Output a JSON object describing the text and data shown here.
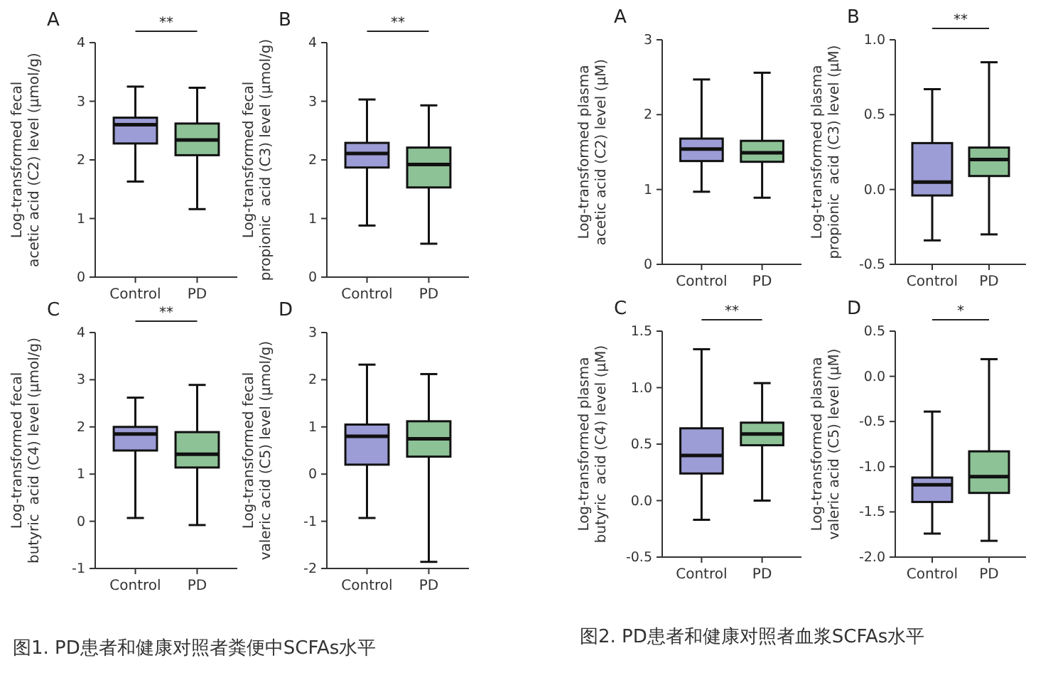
{
  "chart_data": [
    {
      "type": "box",
      "title": "A",
      "ylabel": "Log-transformed fecal\nacetic acid (C2) level (μmol/g)",
      "categories": [
        "Control",
        "PD"
      ],
      "colors": [
        "#4b4bb4",
        "#2f8f3f"
      ],
      "ylim": [
        0,
        4
      ],
      "yticks": [
        0,
        1,
        2,
        3,
        4
      ],
      "annotations": [
        "**"
      ],
      "boxes": [
        {
          "low": 1.63,
          "q1": 2.28,
          "median": 2.6,
          "q3": 2.72,
          "high": 3.25
        },
        {
          "low": 1.16,
          "q1": 2.08,
          "median": 2.34,
          "q3": 2.62,
          "high": 3.23
        }
      ]
    },
    {
      "type": "box",
      "title": "B",
      "ylabel": "Log-transformed fecal\npropionic  acid (C3) level (μmol/g)",
      "categories": [
        "Control",
        "PD"
      ],
      "colors": [
        "#4b4bb4",
        "#2f8f3f"
      ],
      "ylim": [
        0,
        4
      ],
      "yticks": [
        0,
        1,
        2,
        3,
        4
      ],
      "annotations": [
        "**"
      ],
      "boxes": [
        {
          "low": 0.88,
          "q1": 1.87,
          "median": 2.11,
          "q3": 2.29,
          "high": 3.03
        },
        {
          "low": 0.57,
          "q1": 1.53,
          "median": 1.92,
          "q3": 2.21,
          "high": 2.93
        }
      ]
    },
    {
      "type": "box",
      "title": "C",
      "ylabel": "Log-transformed fecal\nbutyric  acid (C4) level (μmol/g)",
      "categories": [
        "Control",
        "PD"
      ],
      "colors": [
        "#4b4bb4",
        "#2f8f3f"
      ],
      "ylim": [
        -1,
        4
      ],
      "yticks": [
        -1,
        0,
        1,
        2,
        3,
        4
      ],
      "annotations": [
        "**",
        "图1. PD患者和健康对照者粪便中SCFAs水平"
      ],
      "boxes": [
        {
          "low": 0.07,
          "q1": 1.5,
          "median": 1.85,
          "q3": 2.0,
          "high": 2.62
        },
        {
          "low": -0.08,
          "q1": 1.14,
          "median": 1.42,
          "q3": 1.89,
          "high": 2.89
        }
      ]
    },
    {
      "type": "box",
      "title": "D",
      "ylabel": "Log-transformed fecal\nvaleric acid (C5) level (μmol/g)",
      "categories": [
        "Control",
        "PD"
      ],
      "colors": [
        "#4b4bb4",
        "#2f8f3f"
      ],
      "ylim": [
        -2,
        3
      ],
      "yticks": [
        -2,
        -1,
        0,
        1,
        2,
        3
      ],
      "boxes": [
        {
          "low": -0.93,
          "q1": 0.2,
          "median": 0.8,
          "q3": 1.05,
          "high": 2.32
        },
        {
          "low": -1.86,
          "q1": 0.37,
          "median": 0.75,
          "q3": 1.12,
          "high": 2.12
        }
      ]
    },
    {
      "type": "box",
      "title": "A",
      "ylabel": "Log-transformed plasma\nacetic acid (C2) level (μM)",
      "categories": [
        "Control",
        "PD"
      ],
      "colors": [
        "#4b4bb4",
        "#2f8f3f"
      ],
      "ylim": [
        0,
        3
      ],
      "yticks": [
        0,
        1,
        2,
        3
      ],
      "boxes": [
        {
          "low": 0.97,
          "q1": 1.38,
          "median": 1.54,
          "q3": 1.68,
          "high": 2.47
        },
        {
          "low": 0.89,
          "q1": 1.37,
          "median": 1.49,
          "q3": 1.65,
          "high": 2.56
        }
      ]
    },
    {
      "type": "box",
      "title": "B",
      "ylabel": "Log-transformed plasma\npropionic  acid (C3) level (μM)",
      "categories": [
        "Control",
        "PD"
      ],
      "colors": [
        "#4b4bb4",
        "#2f8f3f"
      ],
      "ylim": [
        -0.5,
        1
      ],
      "yticks": [
        {
          "value": -0.5,
          "label": "-0.5"
        },
        {
          "value": 0,
          "label": "0.0"
        },
        {
          "value": 0.5,
          "label": "0.5"
        },
        {
          "value": 1,
          "label": "1.0"
        }
      ],
      "annotations": [
        "**"
      ],
      "boxes": [
        {
          "low": -0.34,
          "q1": -0.04,
          "median": 0.05,
          "q3": 0.31,
          "high": 0.67
        },
        {
          "low": -0.3,
          "q1": 0.09,
          "median": 0.2,
          "q3": 0.28,
          "high": 0.85
        }
      ]
    },
    {
      "type": "box",
      "title": "C",
      "ylabel": "Log-transformed plasma\nbutyric  acid (C4) level (μM)",
      "categories": [
        "Control",
        "PD"
      ],
      "colors": [
        "#4b4bb4",
        "#2f8f3f"
      ],
      "ylim": [
        -0.5,
        1.5
      ],
      "yticks": [
        {
          "value": -0.5,
          "label": "-0.5"
        },
        {
          "value": 0,
          "label": "0.0"
        },
        {
          "value": 0.5,
          "label": "0.5"
        },
        {
          "value": 1,
          "label": "1.0"
        },
        {
          "value": 1.5,
          "label": "1.5"
        }
      ],
      "annotations": [
        "**",
        "图2. PD患者和健康对照者血浆SCFAs水平"
      ],
      "boxes": [
        {
          "low": -0.17,
          "q1": 0.24,
          "median": 0.4,
          "q3": 0.64,
          "high": 1.34
        },
        {
          "low": 0.0,
          "q1": 0.49,
          "median": 0.59,
          "q3": 0.69,
          "high": 1.04
        }
      ]
    },
    {
      "type": "box",
      "title": "D",
      "ylabel": "Log-transformed plasma\nvaleric acid (C5) level (μM)",
      "categories": [
        "Control",
        "PD"
      ],
      "colors": [
        "#4b4bb4",
        "#2f8f3f"
      ],
      "ylim": [
        -2,
        0.5
      ],
      "yticks": [
        {
          "value": -2,
          "label": "-2.0"
        },
        {
          "value": -1.5,
          "label": "-1.5"
        },
        {
          "value": -1,
          "label": "-1.0"
        },
        {
          "value": -0.5,
          "label": "-0.5"
        },
        {
          "value": 0,
          "label": "0.0"
        },
        {
          "value": 0.5,
          "label": "0.5"
        }
      ],
      "annotations": [
        "*"
      ],
      "boxes": [
        {
          "low": -1.74,
          "q1": -1.39,
          "median": -1.2,
          "q3": -1.12,
          "high": -0.39
        },
        {
          "low": -1.82,
          "q1": -1.29,
          "median": -1.11,
          "q3": -0.83,
          "high": 0.19
        }
      ]
    }
  ]
}
